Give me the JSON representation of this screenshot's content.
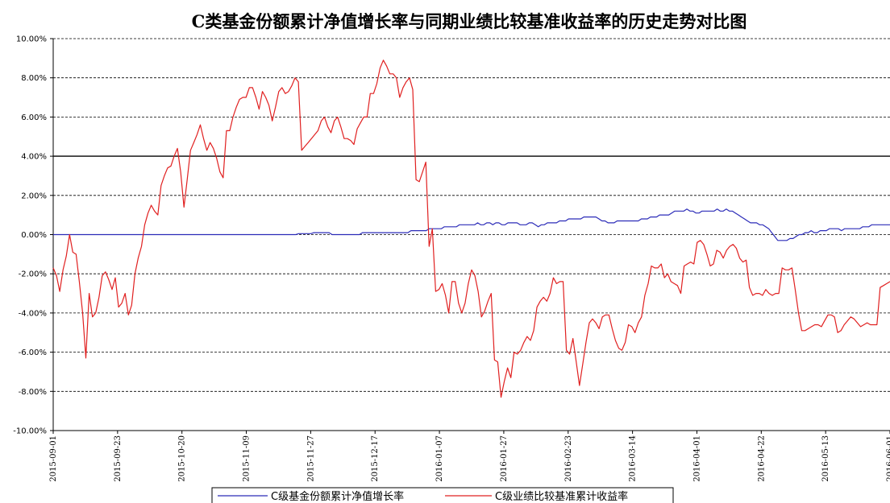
{
  "chart_data": {
    "type": "line",
    "title": "C类基金份额累计净值增长率与同期业绩比较基准收益率的历史走势对比图",
    "xlabel": "",
    "ylabel": "",
    "ylim": [
      -10,
      10
    ],
    "y_ticks": [
      10,
      8,
      6,
      4,
      2,
      0,
      -2,
      -4,
      -6,
      -8,
      -10
    ],
    "y_tick_labels": [
      "10.00%",
      "8.00%",
      "6.00%",
      "4.00%",
      "2.00%",
      "0.00%",
      "-2.00%",
      "-4.00%",
      "-6.00%",
      "-8.00%",
      "-10.00%"
    ],
    "x_tick_labels": [
      "2015-09-01",
      "2015-09-23",
      "2015-10-20",
      "2015-11-09",
      "2015-11-27",
      "2015-12-17",
      "2016-01-07",
      "2016-01-27",
      "2016-02-23",
      "2016-03-14",
      "2016-04-01",
      "2016-04-22",
      "2016-05-13",
      "2016-06-01"
    ],
    "grid": true,
    "legend_position": "bottom",
    "series": [
      {
        "name": "C级基金份额累计净值增长率",
        "color": "#2b2bb8",
        "values": [
          0,
          0,
          0,
          0,
          0,
          0,
          0,
          0,
          0,
          0,
          0,
          0,
          0,
          0,
          0,
          0,
          0,
          0,
          0,
          0,
          0,
          0,
          0,
          0,
          0,
          0,
          0,
          0,
          0,
          0,
          0,
          0,
          0,
          0,
          0,
          0,
          0,
          0,
          0,
          0,
          0,
          0,
          0,
          0,
          0,
          0,
          0,
          0,
          0,
          0,
          0,
          0,
          0,
          0,
          0,
          0,
          0,
          0,
          0,
          0,
          0,
          0,
          0,
          0,
          0,
          0,
          0,
          0,
          0,
          0,
          0,
          0,
          0,
          0,
          0,
          0,
          0,
          0,
          0,
          0,
          0,
          0.05,
          0.05,
          0.05,
          0.05,
          0.05,
          0.1,
          0.1,
          0.1,
          0.1,
          0.1,
          0.1,
          0,
          0,
          0,
          0,
          0,
          0,
          0,
          0,
          0,
          0,
          0.1,
          0.1,
          0.1,
          0.1,
          0.1,
          0.1,
          0.1,
          0.1,
          0.1,
          0.1,
          0.1,
          0.1,
          0.1,
          0.1,
          0.1,
          0.1,
          0.2,
          0.2,
          0.2,
          0.2,
          0.2,
          0.2,
          0.3,
          0.3,
          0.3,
          0.3,
          0.3,
          0.4,
          0.4,
          0.4,
          0.4,
          0.4,
          0.5,
          0.5,
          0.5,
          0.5,
          0.5,
          0.5,
          0.6,
          0.5,
          0.5,
          0.6,
          0.6,
          0.5,
          0.6,
          0.6,
          0.5,
          0.5,
          0.6,
          0.6,
          0.6,
          0.6,
          0.5,
          0.5,
          0.5,
          0.6,
          0.6,
          0.5,
          0.4,
          0.5,
          0.5,
          0.6,
          0.6,
          0.6,
          0.6,
          0.7,
          0.7,
          0.7,
          0.8,
          0.8,
          0.8,
          0.8,
          0.8,
          0.9,
          0.9,
          0.9,
          0.9,
          0.9,
          0.8,
          0.7,
          0.7,
          0.6,
          0.6,
          0.6,
          0.7,
          0.7,
          0.7,
          0.7,
          0.7,
          0.7,
          0.7,
          0.7,
          0.8,
          0.8,
          0.8,
          0.9,
          0.9,
          0.9,
          1.0,
          1.0,
          1.0,
          1.0,
          1.1,
          1.2,
          1.2,
          1.2,
          1.2,
          1.3,
          1.2,
          1.2,
          1.1,
          1.1,
          1.2,
          1.2,
          1.2,
          1.2,
          1.2,
          1.3,
          1.2,
          1.2,
          1.3,
          1.2,
          1.2,
          1.1,
          1.0,
          0.9,
          0.8,
          0.7,
          0.6,
          0.6,
          0.6,
          0.5,
          0.5,
          0.4,
          0.3,
          0.1,
          -0.1,
          -0.3,
          -0.3,
          -0.3,
          -0.3,
          -0.2,
          -0.2,
          -0.1,
          0.0,
          0.0,
          0.1,
          0.1,
          0.2,
          0.1,
          0.1,
          0.2,
          0.2,
          0.2,
          0.3,
          0.3,
          0.3,
          0.3,
          0.2,
          0.3,
          0.3,
          0.3,
          0.3,
          0.3,
          0.3,
          0.4,
          0.4,
          0.4,
          0.5,
          0.5,
          0.5,
          0.5,
          0.5,
          0.5,
          0.5
        ]
      },
      {
        "name": "C级业绩比较基准累计收益率",
        "color": "#e02020",
        "values": [
          -1.7,
          -2.1,
          -2.9,
          -1.8,
          -1.1,
          0.0,
          -0.9,
          -1.0,
          -2.4,
          -4.0,
          -6.3,
          -3.0,
          -4.2,
          -4.0,
          -3.2,
          -2.1,
          -1.9,
          -2.3,
          -2.8,
          -2.2,
          -3.7,
          -3.5,
          -3.0,
          -4.1,
          -3.6,
          -2.0,
          -1.2,
          -0.6,
          0.5,
          1.1,
          1.5,
          1.2,
          1.0,
          2.5,
          3.0,
          3.4,
          3.5,
          4.0,
          4.4,
          3.2,
          1.4,
          2.8,
          4.3,
          4.7,
          5.1,
          5.6,
          4.9,
          4.3,
          4.7,
          4.4,
          3.9,
          3.2,
          2.9,
          5.3,
          5.3,
          6.0,
          6.5,
          6.9,
          7.0,
          7.0,
          7.5,
          7.5,
          7.0,
          6.4,
          7.3,
          7.0,
          6.6,
          5.8,
          6.5,
          7.3,
          7.5,
          7.2,
          7.3,
          7.6,
          8.0,
          7.8,
          4.3,
          4.5,
          4.7,
          4.9,
          5.1,
          5.3,
          5.8,
          6.0,
          5.5,
          5.2,
          5.8,
          6.0,
          5.5,
          4.9,
          4.9,
          4.8,
          4.6,
          5.4,
          5.7,
          6.0,
          6.0,
          7.2,
          7.2,
          7.7,
          8.5,
          8.9,
          8.6,
          8.2,
          8.2,
          8.0,
          7.0,
          7.5,
          7.8,
          8.0,
          7.4,
          2.8,
          2.7,
          3.2,
          3.7,
          -0.6,
          0.3,
          -2.9,
          -2.8,
          -2.5,
          -3.1,
          -4.0,
          -2.4,
          -2.4,
          -3.5,
          -4.0,
          -3.5,
          -2.5,
          -1.8,
          -2.1,
          -2.9,
          -4.2,
          -3.9,
          -3.4,
          -3.0,
          -6.4,
          -6.5,
          -8.3,
          -7.5,
          -6.8,
          -7.3,
          -6.0,
          -6.1,
          -5.9,
          -5.5,
          -5.2,
          -5.4,
          -4.9,
          -3.7,
          -3.4,
          -3.2,
          -3.4,
          -3.0,
          -2.2,
          -2.5,
          -2.4,
          -2.4,
          -5.9,
          -6.1,
          -5.3,
          -6.5,
          -7.7,
          -6.6,
          -5.5,
          -4.5,
          -4.3,
          -4.5,
          -4.8,
          -4.2,
          -4.1,
          -4.1,
          -4.8,
          -5.4,
          -5.8,
          -5.9,
          -5.5,
          -4.6,
          -4.7,
          -5.0,
          -4.5,
          -4.2,
          -3.1,
          -2.5,
          -1.6,
          -1.7,
          -1.7,
          -1.5,
          -2.2,
          -2.0,
          -2.4,
          -2.5,
          -2.6,
          -3.0,
          -1.6,
          -1.5,
          -1.4,
          -1.5,
          -0.4,
          -0.3,
          -0.5,
          -1.0,
          -1.6,
          -1.5,
          -0.8,
          -0.9,
          -1.2,
          -0.8,
          -0.6,
          -0.5,
          -0.7,
          -1.2,
          -1.4,
          -1.3,
          -2.7,
          -3.1,
          -3.0,
          -3.0,
          -3.1,
          -2.8,
          -3.0,
          -3.1,
          -3.0,
          -3.0,
          -1.7,
          -1.8,
          -1.8,
          -1.7,
          -2.8,
          -4.0,
          -4.9,
          -4.9,
          -4.8,
          -4.7,
          -4.6,
          -4.6,
          -4.7,
          -4.4,
          -4.1,
          -4.1,
          -4.2,
          -5.0,
          -4.9,
          -4.6,
          -4.4,
          -4.2,
          -4.3,
          -4.5,
          -4.7,
          -4.6,
          -4.5,
          -4.6,
          -4.6,
          -4.6,
          -2.7,
          -2.6,
          -2.5,
          -2.4
        ]
      }
    ]
  }
}
